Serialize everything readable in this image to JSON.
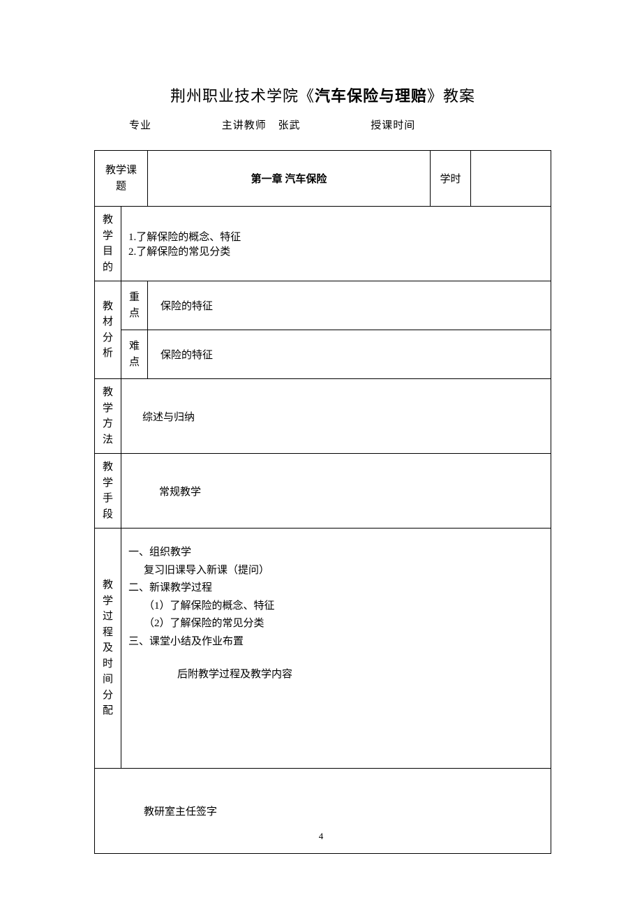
{
  "title": {
    "prefix": "荆州职业技术学院《",
    "bold": "汽车保险与理赔",
    "suffix": "》教案"
  },
  "header": {
    "major_label": "专业",
    "teacher_label": "主讲教师",
    "teacher_value": "张武",
    "time_label": "授课时间"
  },
  "table": {
    "topic_label": "教学课题",
    "topic_value": "第一章 汽车保险",
    "hours_label": "学时",
    "hours_value": "",
    "objective_label": "教学目的",
    "objective_line1": "1.了解保险的概念、特征",
    "objective_line2": "2.了解保险的常见分类",
    "analysis_label": "教材分析",
    "keypoint_label": "重点",
    "keypoint_value": "保险的特征",
    "difficulty_label": "难点",
    "difficulty_value": "保险的特征",
    "method_label": "教学方法",
    "method_value": "综述与归纳",
    "means_label": "教学手段",
    "means_value": "常规教学",
    "process_label": "教学过程及时间分配",
    "process_lines": {
      "l1": "一、组织教学",
      "l2": "复习旧课导入新课（提问）",
      "l3": "二、新课教学过程",
      "l4": "（1）了解保险的概念、特征",
      "l5": "（2）了解保险的常见分类",
      "l6": "三、课堂小结及作业布置",
      "footer": "后附教学过程及教学内容"
    },
    "signature": "教研室主任签字"
  },
  "page_number": "4",
  "colors": {
    "background": "#ffffff",
    "border": "#000000",
    "text": "#000000"
  }
}
